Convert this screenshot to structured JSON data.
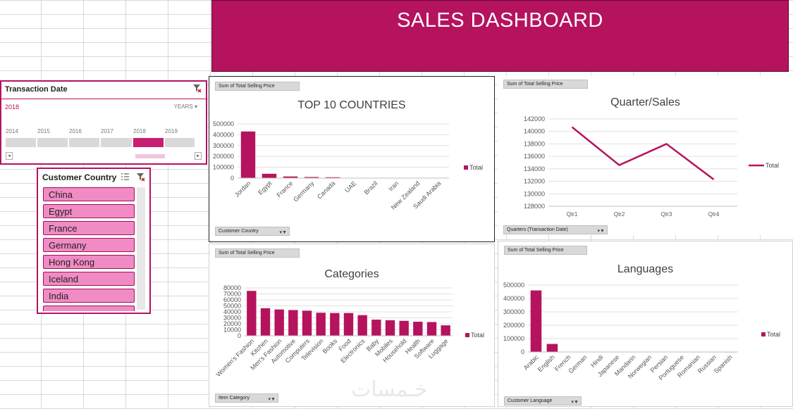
{
  "dashboard_title": "SALES DASHBOARD",
  "accent_color": "#b5135e",
  "transaction_slicer": {
    "header": "Transaction Date",
    "selected": "2018",
    "level": "YEARS",
    "years": [
      "2014",
      "2015",
      "2016",
      "2017",
      "2018",
      "2019"
    ],
    "active_year": "2018"
  },
  "country_slicer": {
    "header": "Customer Country",
    "items": [
      "China",
      "Egypt",
      "France",
      "Germany",
      "Hong Kong",
      "Iceland",
      "India"
    ]
  },
  "panels": {
    "countries": {
      "value_field": "Sum of Total Selling Price",
      "axis_field": "Customer Country"
    },
    "quarter": {
      "value_field": "Sum of Total Selling Price",
      "axis_field": "Quarters (Transaction Date)"
    },
    "categories": {
      "value_field": "Sum of Total Selling Price",
      "axis_field": "Item Category"
    },
    "languages": {
      "value_field": "Sum of Total Selling Price",
      "axis_field": "Customer Language"
    }
  },
  "chart_data": [
    {
      "type": "bar",
      "title": "TOP 10 COUNTRIES",
      "categories": [
        "Jordan",
        "Egypt",
        "France",
        "Germany",
        "Canada",
        "UAE",
        "Brazil",
        "Iran",
        "New Zealand",
        "Saudi Arabia"
      ],
      "series": [
        {
          "name": "Total",
          "values": [
            430000,
            40000,
            15000,
            10000,
            8000,
            2000,
            1500,
            1200,
            1000,
            800
          ]
        }
      ],
      "yticks": [
        0,
        100000,
        200000,
        300000,
        400000,
        500000
      ],
      "ylim": [
        0,
        500000
      ],
      "legend": "right",
      "grid": true
    },
    {
      "type": "line",
      "title": "Quarter/Sales",
      "categories": [
        "Qtr1",
        "Qtr2",
        "Qtr3",
        "Qtr4"
      ],
      "series": [
        {
          "name": "Total",
          "values": [
            140700,
            134600,
            138000,
            132300
          ]
        }
      ],
      "yticks": [
        128000,
        130000,
        132000,
        134000,
        136000,
        138000,
        140000,
        142000
      ],
      "ylim": [
        128000,
        142000
      ],
      "legend": "right",
      "grid": true
    },
    {
      "type": "bar",
      "title": "Categories",
      "categories": [
        "Women's Fashion",
        "Kitchen",
        "Men's Fashion",
        "Automotive",
        "Computers",
        "Television",
        "Books",
        "Food",
        "Electronics",
        "Baby",
        "Mobiles",
        "Household",
        "Health",
        "Software",
        "Luggage"
      ],
      "series": [
        {
          "name": "Total",
          "values": [
            75000,
            46000,
            44000,
            43000,
            42000,
            38500,
            38000,
            38000,
            34500,
            27000,
            26000,
            25000,
            23500,
            23000,
            17500
          ]
        }
      ],
      "yticks": [
        0,
        10000,
        20000,
        30000,
        40000,
        50000,
        60000,
        70000,
        80000
      ],
      "ylim": [
        0,
        80000
      ],
      "legend": "right",
      "grid": true
    },
    {
      "type": "bar",
      "title": "Languages",
      "categories": [
        "Arabic",
        "English",
        "French",
        "German",
        "Hindi",
        "Japanese",
        "Mandarin",
        "Norwegian",
        "Persian",
        "Portuguese",
        "Romanian",
        "Russian",
        "Spanish"
      ],
      "series": [
        {
          "name": "Total",
          "values": [
            460000,
            60000,
            1500,
            1200,
            1000,
            900,
            800,
            700,
            600,
            500,
            400,
            300,
            200
          ]
        }
      ],
      "yticks": [
        0,
        100000,
        200000,
        300000,
        400000,
        500000
      ],
      "ylim": [
        0,
        500000
      ],
      "legend": "right",
      "grid": true
    }
  ]
}
